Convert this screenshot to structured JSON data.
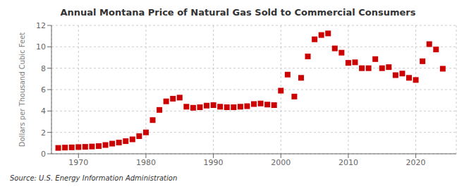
{
  "chart_data": {
    "type": "scatter",
    "title": "Annual Montana Price of Natural Gas Sold to Commercial Consumers",
    "ylabel": "Dollars per Thousand Cubic Feet",
    "annotations": [
      "Source: U.S. Energy Information Administration"
    ],
    "color": "#cc0000",
    "marker": "square",
    "grid": true,
    "xlim": [
      1966,
      2026
    ],
    "ylim": [
      0,
      12
    ],
    "xticks": [
      1970,
      1980,
      1990,
      2000,
      2010,
      2020
    ],
    "yticks": [
      0,
      2,
      4,
      6,
      8,
      10,
      12
    ],
    "x": [
      1967,
      1968,
      1969,
      1970,
      1971,
      1972,
      1973,
      1974,
      1975,
      1976,
      1977,
      1978,
      1979,
      1980,
      1981,
      1982,
      1983,
      1984,
      1985,
      1986,
      1987,
      1988,
      1989,
      1990,
      1991,
      1992,
      1993,
      1994,
      1995,
      1996,
      1997,
      1998,
      1999,
      2000,
      2001,
      2002,
      2003,
      2004,
      2005,
      2006,
      2007,
      2008,
      2009,
      2010,
      2011,
      2012,
      2013,
      2014,
      2015,
      2016,
      2017,
      2018,
      2019,
      2020,
      2021,
      2022,
      2023,
      2024
    ],
    "values": [
      0.55,
      0.58,
      0.6,
      0.63,
      0.65,
      0.68,
      0.72,
      0.82,
      0.95,
      1.05,
      1.18,
      1.35,
      1.65,
      2.0,
      3.15,
      4.1,
      4.9,
      5.15,
      5.25,
      4.4,
      4.3,
      4.35,
      4.5,
      4.55,
      4.4,
      4.35,
      4.35,
      4.4,
      4.45,
      4.65,
      4.7,
      4.6,
      4.55,
      5.9,
      7.4,
      5.35,
      7.1,
      9.1,
      10.7,
      11.1,
      11.25,
      9.85,
      9.45,
      8.5,
      8.55,
      8.0,
      8.0,
      8.85,
      8.0,
      8.1,
      7.35,
      7.5,
      7.1,
      6.9,
      8.65,
      10.25,
      9.75,
      7.95
    ]
  }
}
